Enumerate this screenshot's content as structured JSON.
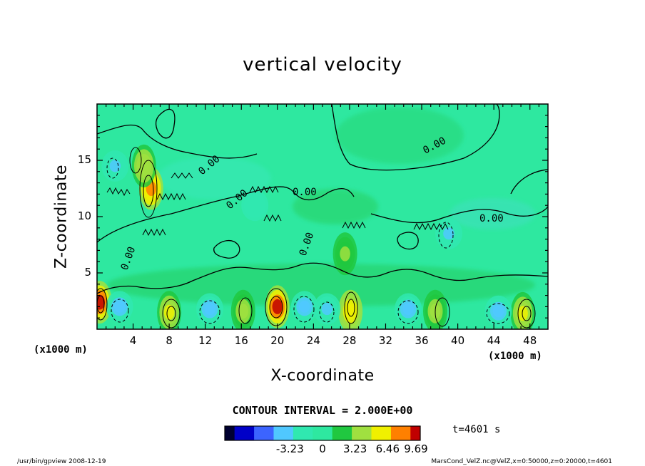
{
  "chart_data": {
    "type": "heatmap",
    "title": "vertical velocity",
    "xlabel": "X-coordinate",
    "ylabel": "Z-coordinate",
    "x_unit": "(x1000 m)",
    "xlim": [
      0,
      50
    ],
    "ylim": [
      0,
      20
    ],
    "x_ticks": [
      4,
      8,
      12,
      16,
      20,
      24,
      28,
      32,
      36,
      40,
      44,
      48
    ],
    "y_ticks": [
      5,
      10,
      15
    ],
    "contour_interval": "CONTOUR INTERVAL = 2.000E+00",
    "contour_labels": [
      "0.00",
      "0.00",
      "0.00",
      "0.00",
      "0.00",
      "0.00",
      "0.00"
    ],
    "colorbar": {
      "range": [
        -9.69,
        9.69
      ],
      "tick_labels": [
        "-3.23",
        "0",
        "3.23",
        "6.46",
        "9.69"
      ],
      "tick_values": [
        -3.23,
        0,
        3.23,
        6.46,
        9.69
      ]
    },
    "updraft_cores": [
      {
        "x": 0.3,
        "z": 2.4,
        "w": 9.0
      },
      {
        "x": 8.0,
        "z": 1.5,
        "w": 5.5
      },
      {
        "x": 16.2,
        "z": 1.6,
        "w": 4.0
      },
      {
        "x": 20.0,
        "z": 2.0,
        "w": 9.0
      },
      {
        "x": 28.1,
        "z": 1.6,
        "w": 6.0
      },
      {
        "x": 37.5,
        "z": 1.6,
        "w": 3.5
      },
      {
        "x": 47.2,
        "z": 1.4,
        "w": 5.0
      },
      {
        "x": 6.0,
        "z": 12.5,
        "w": 8.0
      },
      {
        "x": 5.2,
        "z": 14.5,
        "w": 4.5
      },
      {
        "x": 27.5,
        "z": 6.7,
        "w": 3.0
      }
    ],
    "downdraft_cores": [
      {
        "x": 2.5,
        "z": 2.0,
        "w": -4.0
      },
      {
        "x": 12.5,
        "z": 1.8,
        "w": -3.5
      },
      {
        "x": 23.0,
        "z": 2.0,
        "w": -4.0
      },
      {
        "x": 25.5,
        "z": 1.8,
        "w": -3.0
      },
      {
        "x": 34.5,
        "z": 1.8,
        "w": -3.5
      },
      {
        "x": 44.5,
        "z": 1.6,
        "w": -4.0
      },
      {
        "x": 2.0,
        "z": 14.5,
        "w": -3.0
      },
      {
        "x": 39.0,
        "z": 8.5,
        "w": -3.0
      },
      {
        "x": 17.5,
        "z": 11.0,
        "w": -2.5
      }
    ]
  },
  "time_label": "t=4601 s",
  "footer": {
    "program": "/usr/bin/gpview  2008-12-19",
    "source": "MarsCond_VelZ.nc@VelZ,x=0:50000,z=0:20000,t=4601"
  },
  "colors": {
    "background_field": "#2ee8a0",
    "colormap": [
      "#000030",
      "#0000c8",
      "#3c64ff",
      "#50c8ff",
      "#30e8b0",
      "#2ee8a0",
      "#20c840",
      "#a0e040",
      "#f0f000",
      "#ff8000",
      "#c00000"
    ]
  }
}
